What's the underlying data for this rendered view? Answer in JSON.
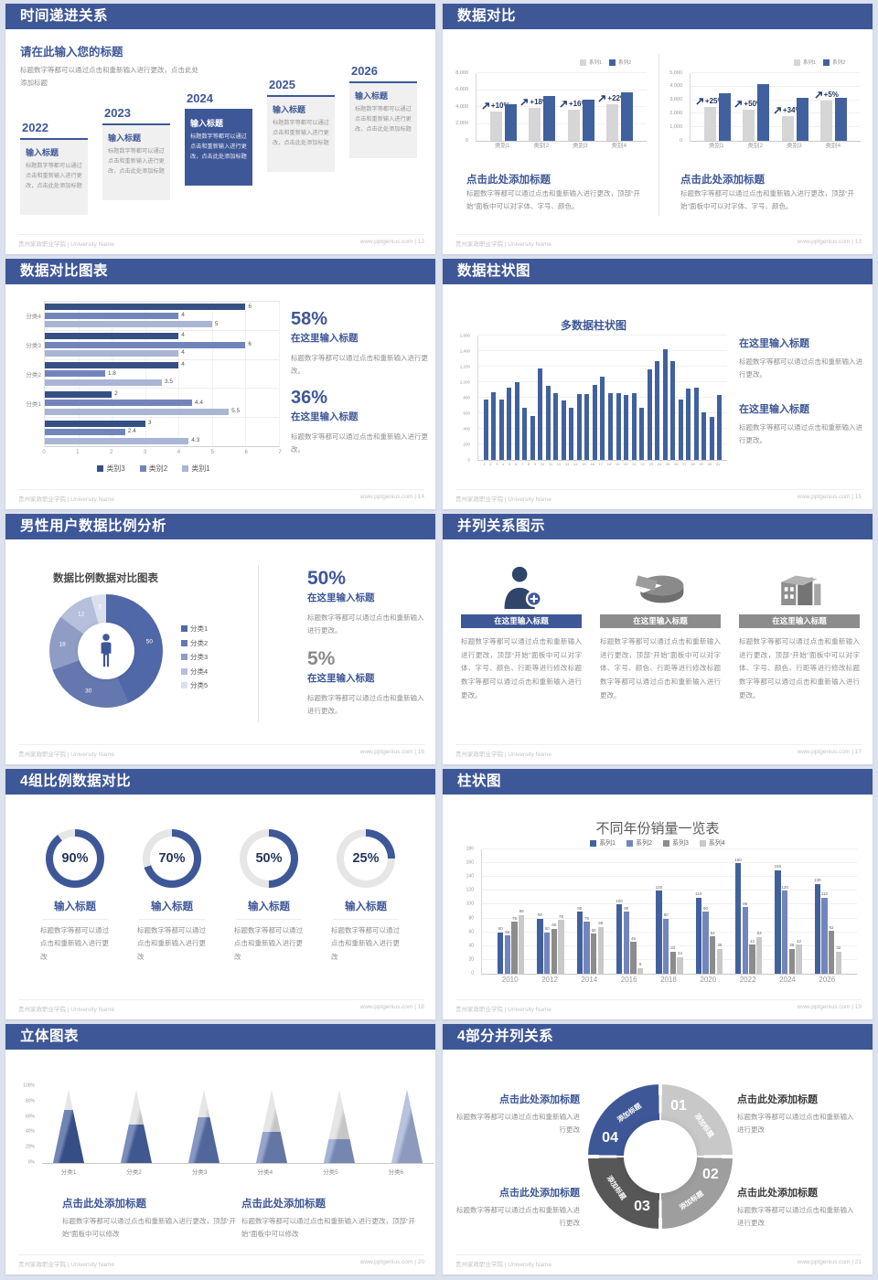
{
  "footer": {
    "org": "贵州家政职业学院 | University Name",
    "site": "www.pptgenius.com"
  },
  "accent_color": "#3E5797",
  "slides": {
    "s1": {
      "header": "时间递进关系",
      "page": "12",
      "title": "请在此输入您的标题",
      "subtitle": "标题数字等都可以通过点击和重新输入进行更改，点击此处添加标题",
      "items": [
        {
          "year": "2022",
          "title": "输入标题",
          "body": "标题数字等都可以通过点击和重新输入进行更改，点击此处添加标题",
          "highlight": false
        },
        {
          "year": "2023",
          "title": "输入标题",
          "body": "标题数字等都可以通过点击和重新输入进行更改，点击此处添加标题",
          "highlight": false
        },
        {
          "year": "2024",
          "title": "输入标题",
          "body": "标题数字等都可以通过点击和重新输入进行更改，点击此处添加标题",
          "highlight": true
        },
        {
          "year": "2025",
          "title": "输入标题",
          "body": "标题数字等都可以通过点击和重新输入进行更改，点击此处添加标题",
          "highlight": false
        },
        {
          "year": "2026",
          "title": "输入标题",
          "body": "标题数字等都可以通过点击和重新输入进行更改，点击此处添加标题",
          "highlight": false
        }
      ]
    },
    "s2": {
      "header": "数据对比",
      "page": "13",
      "left": {
        "heading": "点击此处添加标题",
        "body": "标题数字等都可以通过点击和重新输入进行更改，顶部“开始”面板中可以对字体、字号、颜色。"
      },
      "right": {
        "heading": "点击此处添加标题",
        "body": "标题数字等都可以通过点击和重新输入进行更改，顶部“开始”面板中可以对字体、字号、颜色。"
      }
    },
    "s3": {
      "header": "数据对比图表",
      "page": "14",
      "stats": [
        {
          "pct": "58%",
          "title": "在这里输入标题",
          "body": "标题数字等都可以通过点击和重新输入进行更改。"
        },
        {
          "pct": "36%",
          "title": "在这里输入标题",
          "body": "标题数字等都可以通过点击和重新输入进行更改。"
        }
      ]
    },
    "s4": {
      "header": "数据柱状图",
      "page": "15",
      "blocks": [
        {
          "title": "在这里输入标题",
          "body": "标题数字等都可以通过点击和重新输入进行更改。"
        },
        {
          "title": "在这里输入标题",
          "body": "标题数字等都可以通过点击和重新输入进行更改。"
        }
      ]
    },
    "s5": {
      "header": "男性用户数据比例分析",
      "page": "16",
      "chart_title": "数据比例数据对比图表",
      "stats": [
        {
          "pct": "50%",
          "title": "在这里输入标题",
          "body": "标题数字等都可以通过点击和重新输入进行更改。",
          "gray": false
        },
        {
          "pct": "5%",
          "title": "在这里输入标题",
          "body": "标题数字等都可以通过点击和重新输入进行更改。",
          "gray": true
        }
      ]
    },
    "s6": {
      "header": "并列关系图示",
      "page": "17",
      "cols": [
        {
          "title": "在这里输入标题",
          "body": "标题数字等都可以通过点击和重新输入进行更改，顶部“开始”面板中可以对字体、字号、颜色、行距等进行修改标题数字等都可以通过点击和重新输入进行更改。",
          "accent": true
        },
        {
          "title": "在这里输入标题",
          "body": "标题数字等都可以通过点击和重新输入进行更改，顶部“开始”面板中可以对字体、字号、颜色、行距等进行修改标题数字等都可以通过点击和重新输入进行更改。",
          "accent": false
        },
        {
          "title": "在这里输入标题",
          "body": "标题数字等都可以通过点击和重新输入进行更改，顶部“开始”面板中可以对字体、字号、颜色、行距等进行修改标题数字等都可以通过点击和重新输入进行更改。",
          "accent": false
        }
      ]
    },
    "s7": {
      "header": "4组比例数据对比",
      "page": "18",
      "items": [
        {
          "pct": "90%",
          "title": "输入标题",
          "body": "标题数字等都可以通过点击和重新输入进行更改"
        },
        {
          "pct": "70%",
          "title": "输入标题",
          "body": "标题数字等都可以通过点击和重新输入进行更改"
        },
        {
          "pct": "50%",
          "title": "输入标题",
          "body": "标题数字等都可以通过点击和重新输入进行更改"
        },
        {
          "pct": "25%",
          "title": "输入标题",
          "body": "标题数字等都可以通过点击和重新输入进行更改"
        }
      ]
    },
    "s8": {
      "header": "柱状图",
      "page": "19"
    },
    "s9": {
      "header": "立体图表",
      "page": "20",
      "blocks": [
        {
          "title": "点击此处添加标题",
          "body": "标题数字等都可以通过点击和重新输入进行更改，顶部“开始”面板中可以修改"
        },
        {
          "title": "点击此处添加标题",
          "body": "标题数字等都可以通过点击和重新输入进行更改，顶部“开始”面板中可以修改"
        }
      ]
    },
    "s10": {
      "header": "4部分并列关系",
      "page": "21",
      "blocks": [
        {
          "title": "点击此处添加标题",
          "body": "标题数字等都可以通过点击和重新输入进行更改"
        },
        {
          "title": "点击此处添加标题",
          "body": "标题数字等都可以通过点击和重新输入进行更改"
        },
        {
          "title": "点击此处添加标题",
          "body": "标题数字等都可以通过点击和重新输入进行更改"
        },
        {
          "title": "点击此处添加标题",
          "body": "标题数字等都可以通过点击和重新输入进行更改"
        }
      ]
    }
  },
  "chart_data": [
    {
      "id": "compare_left",
      "type": "bar",
      "legend_position": "top-right",
      "categories": [
        "类别1",
        "类别2",
        "类别3",
        "类别4"
      ],
      "series": [
        {
          "name": "系列1",
          "color": "#D6D6D6",
          "values": [
            3500,
            3900,
            3700,
            4300
          ]
        },
        {
          "name": "系列2",
          "color": "#41619E",
          "values": [
            4300,
            5300,
            4900,
            5700
          ]
        }
      ],
      "growth_labels": [
        "+10%",
        "+18%",
        "+16%",
        "+22%"
      ],
      "ylim": [
        0,
        8000
      ],
      "yticks": [
        "0",
        "2,000",
        "4,000",
        "6,000",
        "8,000"
      ],
      "grid": true
    },
    {
      "id": "compare_right",
      "type": "bar",
      "legend_position": "top-right",
      "categories": [
        "类别1",
        "类别2",
        "类别3",
        "类别4"
      ],
      "series": [
        {
          "name": "系列1",
          "color": "#D6D6D6",
          "values": [
            2500,
            2300,
            1800,
            3000
          ]
        },
        {
          "name": "系列2",
          "color": "#41619E",
          "values": [
            3500,
            4200,
            3200,
            3200
          ]
        }
      ],
      "growth_labels": [
        "+25%",
        "+50%",
        "+34%",
        "+5%"
      ],
      "ylim": [
        0,
        5000
      ],
      "yticks": [
        "0",
        "1,000",
        "2,000",
        "3,000",
        "4,000",
        "5,000"
      ],
      "grid": true
    },
    {
      "id": "hbar",
      "type": "horizontal-bar",
      "legend_position": "bottom",
      "categories": [
        "分类4",
        "分类3",
        "分类2",
        "分类1",
        ""
      ],
      "series": [
        {
          "name": "类别3",
          "color": "#365084",
          "values": [
            6,
            4,
            4,
            2,
            3
          ]
        },
        {
          "name": "类别2",
          "color": "#7285BA",
          "values": [
            4,
            6,
            1.8,
            4.4,
            2.4
          ]
        },
        {
          "name": "类别1",
          "color": "#AAB4D4",
          "values": [
            5,
            4,
            3.5,
            5.5,
            4.3
          ]
        }
      ],
      "xlim": [
        0,
        7
      ],
      "xticks": [
        "0",
        "1",
        "2",
        "3",
        "4",
        "5",
        "6",
        "7"
      ],
      "show_value_labels": true
    },
    {
      "id": "daily",
      "type": "bar",
      "title": "多数据柱状图",
      "color": "#41619E",
      "x": [
        "1",
        "2",
        "3",
        "4",
        "5",
        "6",
        "7",
        "8",
        "9",
        "10",
        "11",
        "12",
        "13",
        "14",
        "15",
        "16",
        "17",
        "18",
        "19",
        "20",
        "21",
        "22",
        "23",
        "24",
        "25",
        "26",
        "27",
        "28",
        "29",
        "30",
        "31"
      ],
      "values": [
        780,
        870,
        780,
        930,
        1000,
        670,
        570,
        1180,
        950,
        860,
        760,
        670,
        850,
        850,
        960,
        1070,
        860,
        860,
        840,
        860,
        670,
        1170,
        1270,
        1420,
        1270,
        780,
        920,
        930,
        610,
        550,
        830
      ],
      "ylim": [
        0,
        1600
      ],
      "yticks": [
        "0",
        "200",
        "400",
        "600",
        "800",
        "1,000",
        "1,200",
        "1,400",
        "1,600"
      ],
      "grid": true
    },
    {
      "id": "donut",
      "type": "pie",
      "title": "数据比例数据对比图表",
      "labels": [
        "分类1",
        "分类2",
        "分类3",
        "分类4",
        "分类5"
      ],
      "values": [
        50,
        30,
        18,
        12,
        5
      ],
      "colors": [
        "#5168A8",
        "#6478AF",
        "#8F9DC5",
        "#B6BFDB",
        "#DCE0EE"
      ],
      "legend_position": "right",
      "center_icon": "male-person-icon"
    },
    {
      "id": "gauges",
      "type": "donut-gauge",
      "values": [
        90,
        70,
        50,
        25
      ],
      "unit": "%",
      "color": "#3E5797",
      "track": "#E6E6E6"
    },
    {
      "id": "sales",
      "type": "bar",
      "title": "不同年份销量一览表",
      "legend_position": "top",
      "categories": [
        "2010",
        "2012",
        "2014",
        "2016",
        "2018",
        "2020",
        "2022",
        "2024",
        "2026"
      ],
      "series": [
        {
          "name": "系列1",
          "color": "#41619E",
          "values": [
            60,
            80,
            90,
            100,
            120,
            110,
            160,
            150,
            130
          ]
        },
        {
          "name": "系列2",
          "color": "#7286BB",
          "values": [
            55,
            60,
            75,
            90,
            80,
            90,
            96,
            120,
            110
          ]
        },
        {
          "name": "系列3",
          "color": "#8C8C8C",
          "values": [
            75,
            65,
            58,
            46,
            32,
            54,
            42,
            36,
            62
          ]
        },
        {
          "name": "系列4",
          "color": "#C9C9C9",
          "values": [
            85,
            78,
            68,
            8,
            24,
            36,
            53,
            42,
            32
          ]
        }
      ],
      "ylim": [
        0,
        180
      ],
      "yticks": [
        "0",
        "20",
        "40",
        "60",
        "80",
        "100",
        "120",
        "140",
        "160",
        "180"
      ],
      "grid": true,
      "show_value_labels": true
    },
    {
      "id": "cones",
      "type": "cone",
      "categories": [
        "分类1",
        "分类2",
        "分类3",
        "分类4",
        "分类5",
        "分类6"
      ],
      "fill_pct": [
        72,
        52,
        62,
        43,
        32,
        100
      ],
      "colors": [
        "#3C5695",
        "#4861A0",
        "#5A71AB",
        "#6E83B7",
        "#8296C4",
        "#9DACD2"
      ],
      "track": "#DCDCDC",
      "yticks": [
        "0%",
        "20%",
        "40%",
        "60%",
        "80%",
        "100%"
      ]
    },
    {
      "id": "ring4",
      "type": "ring",
      "label": "添加标题",
      "segments": [
        {
          "num": "01",
          "color": "#C8C8C8"
        },
        {
          "num": "02",
          "color": "#9E9E9E"
        },
        {
          "num": "03",
          "color": "#575757"
        },
        {
          "num": "04",
          "color": "#3E5797"
        }
      ]
    }
  ]
}
